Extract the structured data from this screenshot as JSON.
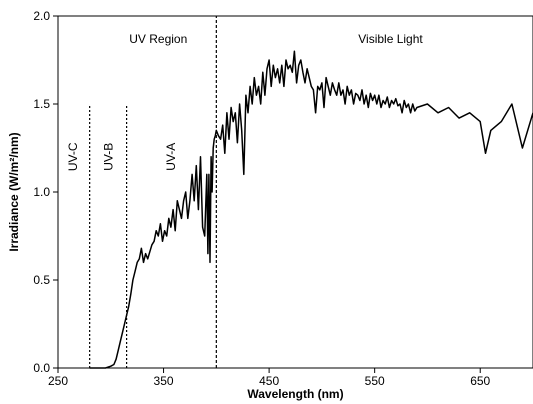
{
  "chart_data": {
    "type": "line",
    "title": "",
    "xlabel": "Wavelength (nm)",
    "ylabel": "Irradiance (W/m²/nm)",
    "xlim": [
      250,
      700
    ],
    "ylim": [
      0.0,
      2.0
    ],
    "x_ticks": [
      250,
      350,
      450,
      550,
      650
    ],
    "x_tick_labels": [
      "250",
      "350",
      "450",
      "550",
      "650"
    ],
    "y_ticks": [
      0.0,
      0.5,
      1.0,
      1.5,
      2.0
    ],
    "y_tick_labels": [
      "0.0",
      "0.5",
      "1.0",
      "1.5",
      "2.0"
    ],
    "grid": false,
    "legend": "none",
    "line_color": "#000000",
    "region_lines": [
      {
        "x": 280,
        "y_top": 1.5,
        "style": "dotted"
      },
      {
        "x": 315,
        "y_top": 1.5,
        "style": "dotted"
      },
      {
        "x": 400,
        "y_top": 2.0,
        "style": "dashed"
      }
    ],
    "annotations": [
      {
        "text": "UV Region",
        "x": 345,
        "y": 1.87,
        "rotate": 0
      },
      {
        "text": "Visible Light",
        "x": 565,
        "y": 1.87,
        "rotate": 0
      },
      {
        "text": "UV-C",
        "x": 264,
        "y": 1.2,
        "rotate": -90
      },
      {
        "text": "UV-B",
        "x": 298,
        "y": 1.2,
        "rotate": -90
      },
      {
        "text": "UV-A",
        "x": 357,
        "y": 1.2,
        "rotate": -90
      }
    ],
    "series": [
      {
        "x": [
          280,
          290,
          295,
          300,
          303,
          305,
          307,
          309,
          311,
          313,
          315,
          317,
          319,
          321,
          323,
          325,
          327,
          329,
          331,
          333,
          335,
          337,
          339,
          341,
          343,
          345,
          347,
          349,
          351,
          353,
          355,
          357,
          359,
          361,
          363,
          365,
          367,
          369,
          371,
          373,
          375,
          377,
          379,
          381,
          383,
          385,
          387,
          389,
          391,
          392,
          393,
          394,
          395,
          396,
          397,
          398,
          399,
          400,
          402,
          404,
          406,
          408,
          410,
          412,
          414,
          416,
          418,
          420,
          422,
          424,
          426,
          428,
          430,
          432,
          434,
          436,
          438,
          440,
          442,
          444,
          446,
          448,
          450,
          452,
          454,
          456,
          458,
          460,
          462,
          464,
          466,
          468,
          470,
          472,
          474,
          476,
          478,
          480,
          482,
          484,
          486,
          488,
          490,
          492,
          494,
          496,
          498,
          500,
          502,
          504,
          506,
          508,
          510,
          512,
          514,
          516,
          518,
          520,
          522,
          524,
          526,
          528,
          530,
          532,
          534,
          536,
          538,
          540,
          542,
          544,
          546,
          548,
          550,
          552,
          554,
          556,
          558,
          560,
          562,
          564,
          566,
          568,
          570,
          572,
          574,
          576,
          578,
          580,
          582,
          584,
          586,
          588,
          590,
          600,
          610,
          620,
          630,
          640,
          650,
          655,
          660,
          670,
          680,
          690,
          700
        ],
        "y": [
          0.0,
          0.0,
          0.0,
          0.01,
          0.02,
          0.05,
          0.1,
          0.15,
          0.2,
          0.25,
          0.3,
          0.35,
          0.42,
          0.5,
          0.55,
          0.6,
          0.62,
          0.68,
          0.6,
          0.65,
          0.62,
          0.66,
          0.7,
          0.72,
          0.78,
          0.75,
          0.82,
          0.72,
          0.78,
          0.75,
          0.85,
          0.8,
          0.9,
          0.78,
          0.95,
          0.9,
          0.85,
          0.95,
          1.0,
          0.85,
          0.95,
          1.1,
          0.95,
          1.15,
          0.9,
          1.2,
          0.8,
          0.75,
          1.1,
          0.65,
          1.1,
          0.6,
          1.2,
          1.0,
          1.25,
          1.3,
          1.32,
          1.35,
          1.32,
          1.3,
          1.38,
          1.22,
          1.45,
          1.3,
          1.48,
          1.4,
          1.45,
          1.28,
          1.5,
          1.35,
          1.1,
          1.55,
          1.45,
          1.6,
          1.5,
          1.65,
          1.55,
          1.6,
          1.5,
          1.68,
          1.55,
          1.7,
          1.75,
          1.6,
          1.72,
          1.65,
          1.7,
          1.62,
          1.72,
          1.6,
          1.75,
          1.7,
          1.72,
          1.68,
          1.8,
          1.62,
          1.72,
          1.75,
          1.68,
          1.62,
          1.7,
          1.65,
          1.6,
          1.58,
          1.45,
          1.6,
          1.58,
          1.62,
          1.48,
          1.65,
          1.6,
          1.55,
          1.62,
          1.58,
          1.55,
          1.62,
          1.55,
          1.58,
          1.5,
          1.6,
          1.55,
          1.58,
          1.5,
          1.56,
          1.55,
          1.52,
          1.58,
          1.5,
          1.55,
          1.48,
          1.56,
          1.52,
          1.55,
          1.5,
          1.55,
          1.48,
          1.52,
          1.5,
          1.54,
          1.48,
          1.52,
          1.5,
          1.53,
          1.49,
          1.5,
          1.45,
          1.52,
          1.48,
          1.5,
          1.45,
          1.5,
          1.46,
          1.48,
          1.5,
          1.45,
          1.48,
          1.42,
          1.45,
          1.4,
          1.22,
          1.35,
          1.4,
          1.5,
          1.25,
          1.45
        ]
      }
    ]
  }
}
